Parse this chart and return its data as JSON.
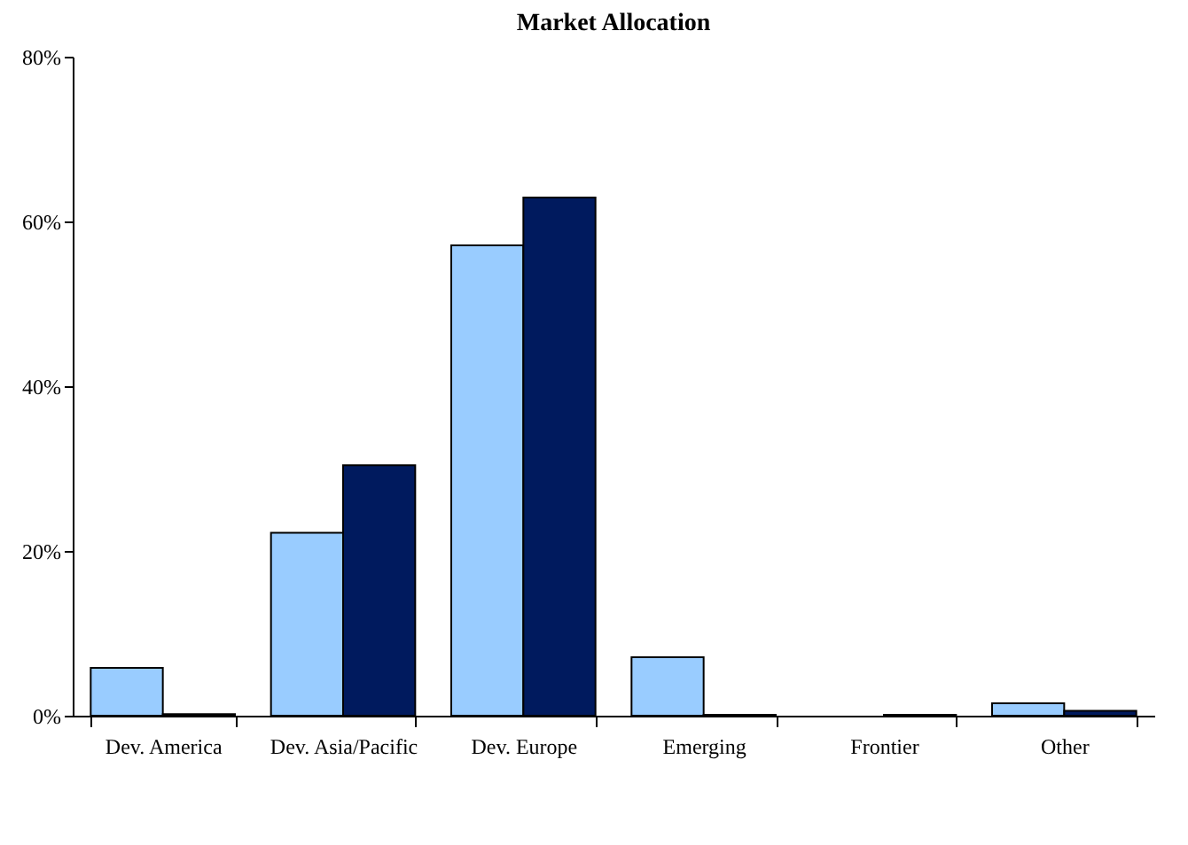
{
  "chart_data": {
    "type": "bar",
    "title": "Market Allocation",
    "categories": [
      "Dev. America",
      "Dev. Asia/Pacific",
      "Dev. Europe",
      "Emerging",
      "Frontier",
      "Other"
    ],
    "series": [
      {
        "color": "#99ccff",
        "values": [
          5.8,
          22.2,
          57.1,
          7.1,
          null,
          1.5
        ]
      },
      {
        "color": "#001a5e",
        "values": [
          0.2,
          30.4,
          62.9,
          0.1,
          0.1,
          0.6
        ]
      }
    ],
    "ylim": [
      0,
      80
    ],
    "yticks": [
      {
        "value": 0,
        "label": "0%"
      },
      {
        "value": 20,
        "label": "20%"
      },
      {
        "value": 40,
        "label": "40%"
      },
      {
        "value": 60,
        "label": "60%"
      },
      {
        "value": 80,
        "label": "80%"
      }
    ],
    "grid": false,
    "legend": false
  }
}
